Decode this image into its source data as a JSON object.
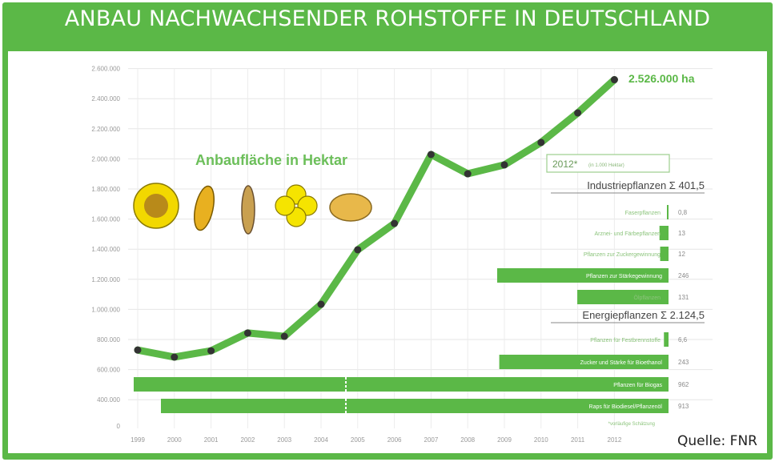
{
  "title": "ANBAU NACHWACHSENDER ROHSTOFFE IN DEUTSCHLAND",
  "source": "Quelle: FNR",
  "colors": {
    "green": "#5bb847",
    "point": "#333333",
    "text_green": "#6cbf5a"
  },
  "chart_data": {
    "type": "line",
    "title": "ANBAU NACHWACHSENDER ROHSTOFFE IN DEUTSCHLAND",
    "subtitle": "Anbaufläche in Hektar",
    "xlabel": "",
    "ylabel": "",
    "x": [
      "1999",
      "2000",
      "2001",
      "2002",
      "2003",
      "2004",
      "2005",
      "2006",
      "2007",
      "2008",
      "2009",
      "2010",
      "2011",
      "2012"
    ],
    "series": [
      {
        "name": "Anbaufläche in Hektar",
        "values": [
          730000,
          683000,
          725000,
          843000,
          821000,
          1034000,
          1396000,
          1571000,
          2029000,
          1901000,
          1960000,
          2109000,
          2305000,
          2526000
        ]
      }
    ],
    "end_label": "2.526.000 ha",
    "y_ticks": [
      {
        "v": 0,
        "l": "0"
      },
      {
        "v": 400000,
        "l": "400.000"
      },
      {
        "v": 600000,
        "l": "600.000"
      },
      {
        "v": 800000,
        "l": "800.000"
      },
      {
        "v": 1000000,
        "l": "1.000.000"
      },
      {
        "v": 1200000,
        "l": "1.200.000"
      },
      {
        "v": 1400000,
        "l": "1.400.000"
      },
      {
        "v": 1600000,
        "l": "1.600.000"
      },
      {
        "v": 1800000,
        "l": "1.800.000"
      },
      {
        "v": 2000000,
        "l": "2.000.000"
      },
      {
        "v": 2200000,
        "l": "2.200.000"
      },
      {
        "v": 2400000,
        "l": "2.400.000"
      },
      {
        "v": 2600000,
        "l": "2.600.000"
      }
    ],
    "ylim": [
      0,
      2600000
    ],
    "grid": true,
    "inset": {
      "type": "bar",
      "header": "2012*",
      "unit": "(in 1.000 Hektar)",
      "footnote": "*vorläufige Schätzung",
      "groups": [
        {
          "name": "Industriepflanzen",
          "sum_symbol": "Σ",
          "sum": "401,5",
          "bars": [
            {
              "label": "Faserpflanzen",
              "value": 0.8,
              "display": "0,8"
            },
            {
              "label": "Arznei- und Färbepflanzen",
              "value": 13,
              "display": "13"
            },
            {
              "label": "Pflanzen zur Zuckergewinnung",
              "value": 12,
              "display": "12"
            },
            {
              "label": "Pflanzen zur Stärkegewinnung",
              "value": 246,
              "display": "246"
            },
            {
              "label": "Ölpflanzen",
              "value": 131,
              "display": "131"
            }
          ]
        },
        {
          "name": "Energiepflanzen",
          "sum_symbol": "Σ",
          "sum": "2.124,5",
          "bars": [
            {
              "label": "Pflanzen für Festbrennstoffe",
              "value": 6.6,
              "display": "6,6"
            },
            {
              "label": "Zucker und Stärke für Bioethanol",
              "value": 243,
              "display": "243"
            },
            {
              "label": "Pflanzen für Biogas",
              "value": 962,
              "display": "962"
            },
            {
              "label": "Raps für Biodiesel/Pflanzenöl",
              "value": 913,
              "display": "913"
            }
          ]
        }
      ]
    }
  },
  "icons": [
    "sunflower-icon",
    "corn-icon",
    "wheat-icon",
    "rapeseed-flower-icon",
    "potato-icon"
  ]
}
